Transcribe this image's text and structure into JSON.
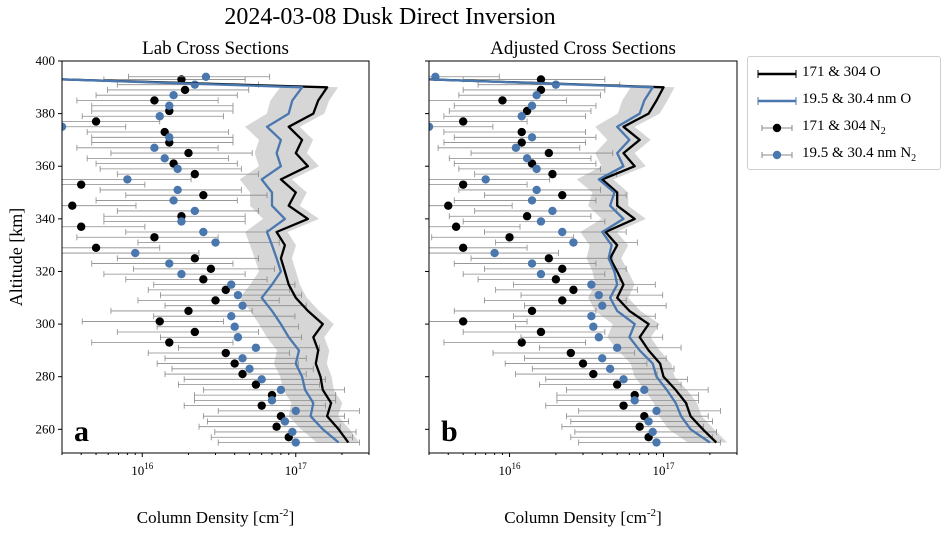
{
  "figure": {
    "suptitle": "2024-03-08 Dusk Direct Inversion"
  },
  "legend": [
    {
      "label": "171 & 304 O",
      "sub": "",
      "color": "#000000",
      "kind": "line"
    },
    {
      "label": "19.5 & 30.4 nm O",
      "sub": "",
      "color": "#4a77ae",
      "kind": "line"
    },
    {
      "label": "171 & 304 N",
      "sub": "2",
      "color": "#000000",
      "kind": "point"
    },
    {
      "label": "19.5 & 30.4 nm N",
      "sub": "2",
      "color": "#4a77ae",
      "kind": "point"
    }
  ],
  "colors": {
    "black_series": "#000000",
    "blue_series": "#4a77ae",
    "band": "#c8c8c8",
    "errbar": "#8a8a8a"
  },
  "chart_data": [
    {
      "type": "line",
      "panel_label": "a",
      "title": "Lab Cross Sections",
      "xlabel": "Column Density",
      "xlabel_unit": "cm",
      "xlabel_unit_exp": "-2",
      "ylabel": "Altitude [km]",
      "xscale": "log",
      "xlim": [
        3000000000000000.0,
        3e+17
      ],
      "ylim": [
        251,
        400
      ],
      "yticks": [
        260,
        280,
        300,
        320,
        340,
        360,
        380,
        400
      ],
      "xticks": [
        {
          "value": 1e+16,
          "label": "10",
          "exp": "16"
        },
        {
          "value": 1e+17,
          "label": "10",
          "exp": "17"
        }
      ],
      "series": [
        {
          "name": "171 & 304 O",
          "kind": "line",
          "color": "#000000",
          "y": [
            255,
            260,
            265,
            270,
            275,
            280,
            285,
            290,
            295,
            300,
            305,
            310,
            315,
            320,
            325,
            330,
            335,
            340,
            345,
            350,
            355,
            360,
            365,
            370,
            375,
            380,
            385,
            390,
            393
          ],
          "x": [
            2.2e+17,
            1.9e+17,
            1.6e+17,
            1.7e+17,
            1.5e+17,
            1.45e+17,
            1.35e+17,
            1.4e+17,
            1.3e+17,
            1.5e+17,
            1.2e+17,
            1e+17,
            9e+16,
            8.5e+16,
            8e+16,
            8.5e+16,
            7.5e+16,
            1.2e+17,
            9e+16,
            1e+17,
            8e+16,
            1.2e+17,
            1e+17,
            1.1e+17,
            9e+16,
            1.3e+17,
            1.4e+17,
            1.6e+17,
            3000000000000000.0
          ]
        },
        {
          "name": "19.5 & 30.4 nm O",
          "kind": "line",
          "color": "#4a77ae",
          "y": [
            255,
            260,
            265,
            270,
            275,
            280,
            285,
            290,
            295,
            300,
            305,
            310,
            315,
            320,
            325,
            330,
            335,
            340,
            345,
            350,
            355,
            360,
            365,
            370,
            375,
            380,
            385,
            390,
            393
          ],
          "x": [
            1.9e+17,
            1.5e+17,
            1.25e+17,
            1.3e+17,
            1.15e+17,
            1.1e+17,
            1e+17,
            1.05e+17,
            9e+16,
            8e+16,
            7e+16,
            6e+16,
            7e+16,
            8e+16,
            7.5e+16,
            7e+16,
            6.5e+16,
            8.5e+16,
            7e+16,
            7e+16,
            6e+16,
            8e+16,
            7.5e+16,
            8e+16,
            6.5e+16,
            9e+16,
            9.5e+16,
            1.1e+17,
            3000000000000000.0
          ]
        },
        {
          "name": "171 & 304 N2",
          "kind": "scatter",
          "color": "#000000",
          "y": [
            257,
            261,
            265,
            269,
            273,
            277,
            281,
            285,
            289,
            293,
            297,
            301,
            305,
            309,
            313,
            317,
            321,
            325,
            329,
            333,
            337,
            341,
            345,
            349,
            353,
            357,
            361,
            365,
            369,
            373,
            377,
            381,
            385,
            389,
            393
          ],
          "x": [
            9e+16,
            7.5e+16,
            8e+16,
            6e+16,
            7e+16,
            5.5e+16,
            4.5e+16,
            4e+16,
            3.5e+16,
            1.5e+16,
            2.2e+16,
            1.3e+16,
            2e+16,
            3e+16,
            3.5e+16,
            2.5e+16,
            2.8e+16,
            2.2e+16,
            5000000000000000.0,
            1.2e+16,
            4000000000000000.0,
            1.8e+16,
            3500000000000000.0,
            2.5e+16,
            4000000000000000.0,
            2.2e+16,
            1.6e+16,
            2e+16,
            1.5e+16,
            1.4e+16,
            5000000000000000.0,
            1.5e+16,
            1.2e+16,
            1.9e+16,
            1.8e+16
          ]
        },
        {
          "name": "19.5 & 30.4 nm N2",
          "kind": "scatter",
          "color": "#4a77ae",
          "y": [
            255,
            259,
            263,
            267,
            271,
            275,
            279,
            283,
            287,
            291,
            295,
            299,
            303,
            307,
            311,
            315,
            319,
            323,
            327,
            331,
            335,
            339,
            343,
            347,
            351,
            355,
            359,
            363,
            367,
            371,
            375,
            379,
            383,
            387,
            391,
            394
          ],
          "x": [
            1e+17,
            9.5e+16,
            8.5e+16,
            1e+17,
            7e+16,
            8e+16,
            6e+16,
            5e+16,
            4.5e+16,
            5.5e+16,
            4.2e+16,
            4e+16,
            3.8e+16,
            4.5e+16,
            4.2e+16,
            3.8e+16,
            1.8e+16,
            1.5e+16,
            9000000000000000.0,
            3e+16,
            2.5e+16,
            1.8e+16,
            2.2e+16,
            1.6e+16,
            1.7e+16,
            8000000000000000.0,
            1.7e+16,
            1.4e+16,
            1.2e+16,
            1.5e+16,
            3000000000000000.0,
            1.3e+16,
            1.5e+16,
            1.6e+16,
            2.2e+16,
            2.6e+16
          ]
        }
      ]
    },
    {
      "type": "line",
      "panel_label": "b",
      "title": "Adjusted Cross Sections",
      "xlabel": "Column Density",
      "xlabel_unit": "cm",
      "xlabel_unit_exp": "-2",
      "ylabel": "",
      "xscale": "log",
      "xlim": [
        3000000000000000.0,
        3e+17
      ],
      "ylim": [
        251,
        400
      ],
      "yticks": [
        260,
        280,
        300,
        320,
        340,
        360,
        380,
        400
      ],
      "xticks": [
        {
          "value": 1e+16,
          "label": "10",
          "exp": "16"
        },
        {
          "value": 1e+17,
          "label": "10",
          "exp": "17"
        }
      ],
      "series": [
        {
          "name": "171 & 304 O",
          "kind": "line",
          "color": "#000000",
          "y": [
            255,
            260,
            265,
            270,
            275,
            280,
            285,
            290,
            295,
            300,
            305,
            310,
            315,
            320,
            325,
            330,
            335,
            340,
            345,
            350,
            355,
            360,
            365,
            370,
            375,
            380,
            385,
            390,
            393
          ],
          "x": [
            2.2e+17,
            1.8e+17,
            1.5e+17,
            1.4e+17,
            1.2e+17,
            1e+17,
            9.5e+16,
            8e+16,
            7e+16,
            8e+16,
            6e+16,
            5e+16,
            5.5e+16,
            5e+16,
            4.5e+16,
            5e+16,
            4.2e+16,
            6.5e+16,
            5e+16,
            5e+16,
            4e+16,
            6.5e+16,
            5.5e+16,
            7e+16,
            5.5e+16,
            8e+16,
            9e+16,
            1e+17,
            3000000000000000.0
          ]
        },
        {
          "name": "19.5 & 30.4 nm O",
          "kind": "line",
          "color": "#4a77ae",
          "y": [
            255,
            260,
            265,
            270,
            275,
            280,
            285,
            290,
            295,
            300,
            305,
            310,
            315,
            320,
            325,
            330,
            335,
            340,
            345,
            350,
            355,
            360,
            365,
            370,
            375,
            380,
            385,
            390,
            393
          ],
          "x": [
            2e+17,
            1.5e+17,
            1.3e+17,
            1.2e+17,
            1.05e+17,
            9e+16,
            8.5e+16,
            7e+16,
            6e+16,
            6.5e+16,
            5e+16,
            4.5e+16,
            5e+16,
            4.8e+16,
            4.4e+16,
            4.6e+16,
            4e+16,
            5.5e+16,
            4.5e+16,
            4.8e+16,
            3.8e+16,
            5.5e+16,
            5e+16,
            6e+16,
            5e+16,
            7e+16,
            7.5e+16,
            8.5e+16,
            3000000000000000.0
          ]
        },
        {
          "name": "171 & 304 N2",
          "kind": "scatter",
          "color": "#000000",
          "y": [
            257,
            261,
            265,
            269,
            273,
            277,
            281,
            285,
            289,
            293,
            297,
            301,
            305,
            309,
            313,
            317,
            321,
            325,
            329,
            333,
            337,
            341,
            345,
            349,
            353,
            357,
            361,
            365,
            369,
            373,
            377,
            381,
            385,
            389,
            393
          ],
          "x": [
            8e+16,
            7e+16,
            7.5e+16,
            5.5e+16,
            6.5e+16,
            5e+16,
            3.5e+16,
            3e+16,
            2.5e+16,
            1.2e+16,
            1.6e+16,
            5000000000000000.0,
            1.4e+16,
            2.2e+16,
            2.6e+16,
            2e+16,
            2.2e+16,
            1.8e+16,
            5000000000000000.0,
            1e+16,
            4500000000000000.0,
            1.3e+16,
            4000000000000000.0,
            2.2e+16,
            5000000000000000.0,
            1.9e+16,
            1.4e+16,
            1.8e+16,
            1.2e+16,
            1.2e+16,
            5000000000000000.0,
            1.3e+16,
            9000000000000000.0,
            1.6e+16,
            1.6e+16
          ]
        },
        {
          "name": "19.5 & 30.4 nm N2",
          "kind": "scatter",
          "color": "#4a77ae",
          "y": [
            255,
            259,
            263,
            267,
            271,
            275,
            279,
            283,
            287,
            291,
            295,
            299,
            303,
            307,
            311,
            315,
            319,
            323,
            327,
            331,
            335,
            339,
            343,
            347,
            351,
            355,
            359,
            363,
            367,
            371,
            375,
            379,
            383,
            387,
            391,
            394
          ],
          "x": [
            9e+16,
            8.5e+16,
            8e+16,
            9e+16,
            6.5e+16,
            7.5e+16,
            5.5e+16,
            4.5e+16,
            4e+16,
            5e+16,
            3.8e+16,
            3.5e+16,
            3.4e+16,
            4e+16,
            3.8e+16,
            3.4e+16,
            1.6e+16,
            1.4e+16,
            8000000000000000.0,
            2.6e+16,
            2.2e+16,
            1.6e+16,
            1.9e+16,
            1.4e+16,
            1.5e+16,
            7000000000000000.0,
            1.5e+16,
            1.3e+16,
            1.1e+16,
            1.4e+16,
            3000000000000000.0,
            1.2e+16,
            1.4e+16,
            1.5e+16,
            2e+16,
            3300000000000000.0
          ]
        }
      ]
    }
  ]
}
